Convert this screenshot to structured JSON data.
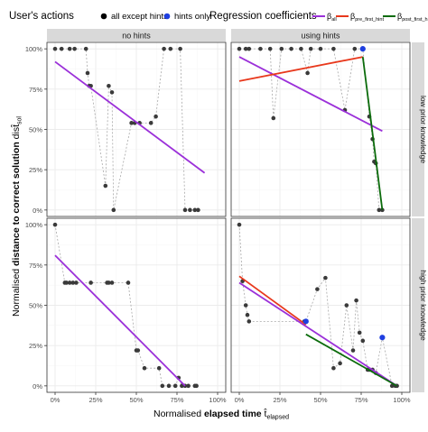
{
  "legend": {
    "actions_title": "User's actions",
    "action_items": [
      {
        "label": "all except hints",
        "color": "#000000"
      },
      {
        "label": "hints only",
        "color": "#1f3fe0"
      }
    ],
    "coef_title": "Regression coefficients",
    "coef_items": [
      {
        "main": "β",
        "sub": "all",
        "color": "#9b30d9"
      },
      {
        "main": "β",
        "sub": "pre_first_hint",
        "color": "#e8381c"
      },
      {
        "main": "β",
        "sub": "post_first_hint",
        "color": "#0b6b0b"
      }
    ]
  },
  "facets": {
    "columns": [
      "no hints",
      "using hints"
    ],
    "rows": [
      "low prior knowledge",
      "high prior knowledge"
    ]
  },
  "axes": {
    "x_label_pre": "Normalised ",
    "x_label_bold": "elapsed time ",
    "x_label_sym": "t̂",
    "x_label_sub": "elapsed",
    "y_label_pre": "Normalised ",
    "y_label_bold": "distance to correct solution ",
    "y_label_sym": "dist̂",
    "y_label_sub": "sol",
    "ticks": [
      "0%",
      "25%",
      "50%",
      "75%",
      "100%"
    ]
  },
  "colors": {
    "points": "#3a3a3a",
    "hint_points": "#1f3fe0",
    "connector": "#a8a8a8",
    "strip_bg": "#d9d9d9",
    "grid_major": "#ebebeb",
    "grid_minor": "#f5f5f5",
    "panel_border": "#333333"
  },
  "chart_data": {
    "type": "scatter",
    "x_range": [
      -0.05,
      1.05
    ],
    "y_range": [
      -0.04,
      1.04
    ],
    "panels": [
      {
        "col": 0,
        "row": 0,
        "points": [
          {
            "x": 0.0,
            "y": 1.0
          },
          {
            "x": 0.04,
            "y": 1.0
          },
          {
            "x": 0.09,
            "y": 1.0
          },
          {
            "x": 0.12,
            "y": 1.0
          },
          {
            "x": 0.19,
            "y": 1.0
          },
          {
            "x": 0.2,
            "y": 0.85
          },
          {
            "x": 0.21,
            "y": 0.77
          },
          {
            "x": 0.22,
            "y": 0.77
          },
          {
            "x": 0.31,
            "y": 0.15
          },
          {
            "x": 0.33,
            "y": 0.77
          },
          {
            "x": 0.35,
            "y": 0.73
          },
          {
            "x": 0.36,
            "y": 0.0
          },
          {
            "x": 0.47,
            "y": 0.54
          },
          {
            "x": 0.49,
            "y": 0.54
          },
          {
            "x": 0.52,
            "y": 0.54
          },
          {
            "x": 0.59,
            "y": 0.54
          },
          {
            "x": 0.62,
            "y": 0.58
          },
          {
            "x": 0.67,
            "y": 1.0
          },
          {
            "x": 0.71,
            "y": 1.0
          },
          {
            "x": 0.77,
            "y": 1.0
          },
          {
            "x": 0.8,
            "y": 0.0
          },
          {
            "x": 0.83,
            "y": 0.0
          },
          {
            "x": 0.86,
            "y": 0.0
          },
          {
            "x": 0.88,
            "y": 0.0
          }
        ],
        "hint_points": [],
        "lines": [
          {
            "coef": "all",
            "x0": 0.0,
            "y0": 0.92,
            "x1": 0.92,
            "y1": 0.23
          }
        ]
      },
      {
        "col": 1,
        "row": 0,
        "points": [
          {
            "x": 0.0,
            "y": 1.0
          },
          {
            "x": 0.04,
            "y": 1.0
          },
          {
            "x": 0.06,
            "y": 1.0
          },
          {
            "x": 0.13,
            "y": 1.0
          },
          {
            "x": 0.19,
            "y": 1.0
          },
          {
            "x": 0.21,
            "y": 0.57
          },
          {
            "x": 0.26,
            "y": 1.0
          },
          {
            "x": 0.32,
            "y": 1.0
          },
          {
            "x": 0.38,
            "y": 1.0
          },
          {
            "x": 0.42,
            "y": 0.85
          },
          {
            "x": 0.44,
            "y": 1.0
          },
          {
            "x": 0.5,
            "y": 1.0
          },
          {
            "x": 0.58,
            "y": 1.0
          },
          {
            "x": 0.65,
            "y": 0.62
          },
          {
            "x": 0.71,
            "y": 1.0
          },
          {
            "x": 0.8,
            "y": 0.58
          },
          {
            "x": 0.82,
            "y": 0.44
          },
          {
            "x": 0.83,
            "y": 0.3
          },
          {
            "x": 0.84,
            "y": 0.29
          },
          {
            "x": 0.86,
            "y": 0.0
          },
          {
            "x": 0.88,
            "y": 0.0
          }
        ],
        "hint_points": [
          {
            "x": 0.76,
            "y": 1.0
          }
        ],
        "lines": [
          {
            "coef": "all",
            "x0": 0.0,
            "y0": 0.95,
            "x1": 0.88,
            "y1": 0.49
          },
          {
            "coef": "pre_first_hint",
            "x0": 0.0,
            "y0": 0.8,
            "x1": 0.76,
            "y1": 0.95
          },
          {
            "coef": "post_first_hint",
            "x0": 0.76,
            "y0": 0.95,
            "x1": 0.88,
            "y1": 0.0
          }
        ]
      },
      {
        "col": 0,
        "row": 1,
        "points": [
          {
            "x": 0.0,
            "y": 1.0
          },
          {
            "x": 0.06,
            "y": 0.64
          },
          {
            "x": 0.07,
            "y": 0.64
          },
          {
            "x": 0.09,
            "y": 0.64
          },
          {
            "x": 0.11,
            "y": 0.64
          },
          {
            "x": 0.13,
            "y": 0.64
          },
          {
            "x": 0.22,
            "y": 0.64
          },
          {
            "x": 0.32,
            "y": 0.64
          },
          {
            "x": 0.33,
            "y": 0.64
          },
          {
            "x": 0.35,
            "y": 0.64
          },
          {
            "x": 0.45,
            "y": 0.64
          },
          {
            "x": 0.5,
            "y": 0.22
          },
          {
            "x": 0.51,
            "y": 0.22
          },
          {
            "x": 0.55,
            "y": 0.11
          },
          {
            "x": 0.64,
            "y": 0.11
          },
          {
            "x": 0.66,
            "y": 0.0
          },
          {
            "x": 0.7,
            "y": 0.0
          },
          {
            "x": 0.74,
            "y": 0.0
          },
          {
            "x": 0.76,
            "y": 0.05
          },
          {
            "x": 0.78,
            "y": 0.0
          },
          {
            "x": 0.8,
            "y": 0.0
          },
          {
            "x": 0.82,
            "y": 0.0
          },
          {
            "x": 0.86,
            "y": 0.0
          },
          {
            "x": 0.87,
            "y": 0.0
          }
        ],
        "hint_points": [],
        "lines": [
          {
            "coef": "all",
            "x0": 0.0,
            "y0": 0.81,
            "x1": 0.8,
            "y1": 0.0
          }
        ]
      },
      {
        "col": 1,
        "row": 1,
        "points": [
          {
            "x": 0.0,
            "y": 1.0
          },
          {
            "x": 0.02,
            "y": 0.65
          },
          {
            "x": 0.04,
            "y": 0.5
          },
          {
            "x": 0.05,
            "y": 0.44
          },
          {
            "x": 0.06,
            "y": 0.4
          },
          {
            "x": 0.4,
            "y": 0.4
          },
          {
            "x": 0.48,
            "y": 0.6
          },
          {
            "x": 0.53,
            "y": 0.67
          },
          {
            "x": 0.58,
            "y": 0.11
          },
          {
            "x": 0.62,
            "y": 0.14
          },
          {
            "x": 0.66,
            "y": 0.5
          },
          {
            "x": 0.7,
            "y": 0.22
          },
          {
            "x": 0.72,
            "y": 0.53
          },
          {
            "x": 0.74,
            "y": 0.33
          },
          {
            "x": 0.76,
            "y": 0.28
          },
          {
            "x": 0.79,
            "y": 0.1
          },
          {
            "x": 0.8,
            "y": 0.1
          },
          {
            "x": 0.82,
            "y": 0.1
          },
          {
            "x": 0.84,
            "y": 0.08
          },
          {
            "x": 0.94,
            "y": 0.0
          },
          {
            "x": 0.96,
            "y": 0.0
          },
          {
            "x": 0.97,
            "y": 0.0
          }
        ],
        "hint_points": [
          {
            "x": 0.41,
            "y": 0.4
          },
          {
            "x": 0.88,
            "y": 0.3
          }
        ],
        "lines": [
          {
            "coef": "all",
            "x0": 0.0,
            "y0": 0.64,
            "x1": 0.97,
            "y1": 0.0
          },
          {
            "coef": "pre_first_hint",
            "x0": 0.0,
            "y0": 0.68,
            "x1": 0.41,
            "y1": 0.38
          },
          {
            "coef": "post_first_hint",
            "x0": 0.41,
            "y0": 0.32,
            "x1": 0.97,
            "y1": 0.0
          }
        ]
      }
    ]
  }
}
